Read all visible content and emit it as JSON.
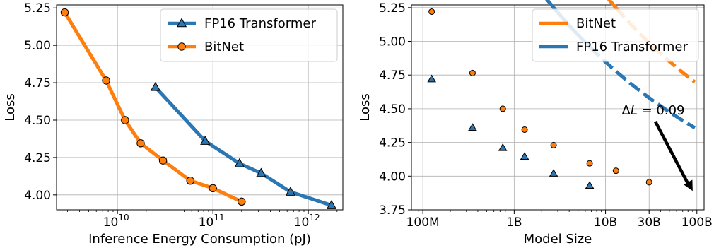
{
  "colors": {
    "fp16": "#2a77b4",
    "bitnet": "#ff7f0e"
  },
  "chart_data": [
    {
      "type": "line",
      "xlabel": "Inference Energy Consumption (pJ)",
      "ylabel": "Loss",
      "xscale": "log",
      "xlim": [
        2300000000.0,
        2300000000000.0
      ],
      "ylim": [
        3.9,
        5.27
      ],
      "yticks": [
        4.0,
        4.25,
        4.5,
        4.75,
        5.0,
        5.25
      ],
      "ytick_labels": [
        "4.00",
        "4.25",
        "4.50",
        "4.75",
        "5.00",
        "5.25"
      ],
      "xticks": [
        10000000000.0,
        100000000000.0,
        1000000000000.0
      ],
      "xtick_labels": [
        {
          "base": "10",
          "exp": "10"
        },
        {
          "base": "10",
          "exp": "11"
        },
        {
          "base": "10",
          "exp": "12"
        }
      ],
      "grid": true,
      "legend": "top-right",
      "series": [
        {
          "name": "FP16 Transformer",
          "color": "#2a77b4",
          "marker": "triangle",
          "x": [
            25000000000.0,
            83000000000.0,
            190000000000.0,
            320000000000.0,
            650000000000.0,
            1750000000000.0
          ],
          "y": [
            4.72,
            4.36,
            4.21,
            4.145,
            4.02,
            3.93
          ]
        },
        {
          "name": "BitNet",
          "color": "#ff7f0e",
          "marker": "circle",
          "x": [
            2800000000.0,
            7600000000.0,
            12000000000.0,
            17500000000.0,
            30000000000.0,
            58000000000.0,
            100000000000.0,
            200000000000.0
          ],
          "y": [
            5.22,
            4.765,
            4.5,
            4.345,
            4.23,
            4.095,
            4.045,
            3.955
          ]
        }
      ]
    },
    {
      "type": "line",
      "xlabel": "Model Size",
      "ylabel": "Loss",
      "xscale": "log",
      "xlim": [
        75000000.0,
        120000000000.0
      ],
      "ylim": [
        3.75,
        5.27
      ],
      "yticks": [
        3.75,
        4.0,
        4.25,
        4.5,
        4.75,
        5.0,
        5.25
      ],
      "ytick_labels": [
        "3.75",
        "4.00",
        "4.25",
        "4.50",
        "4.75",
        "5.00",
        "5.25"
      ],
      "xticks": [
        100000000.0,
        1000000000.0,
        10000000000.0,
        30000000000.0,
        100000000000.0
      ],
      "xtick_labels": [
        "100M",
        "1B",
        "10B",
        "30B",
        "100B"
      ],
      "grid": true,
      "legend": "top-right",
      "annotation": {
        "text": "ΔL = 0.09",
        "x": 90000000000.0,
        "y": 3.88
      },
      "fit_split": 13000000000.0,
      "series": [
        {
          "name": "BitNet",
          "color": "#ff7f0e",
          "marker": "circle",
          "fit": {
            "a": 3.635,
            "b": 11.8,
            "c": 0.21
          },
          "x": [
            125000000.0,
            350000000.0,
            750000000.0,
            1300000000.0,
            2700000000.0,
            6700000000.0,
            13000000000.0,
            30000000000.0
          ],
          "y": [
            5.22,
            4.765,
            4.5,
            4.345,
            4.23,
            4.095,
            4.04,
            3.955
          ]
        },
        {
          "name": "FP16 Transformer",
          "color": "#2a77b4",
          "marker": "triangle",
          "fit": {
            "a": 3.5,
            "b": 8.5,
            "c": 0.2
          },
          "x": [
            125000000.0,
            350000000.0,
            750000000.0,
            1300000000.0,
            2700000000.0,
            6700000000.0
          ],
          "y": [
            4.72,
            4.36,
            4.21,
            4.145,
            4.02,
            3.93
          ]
        }
      ]
    }
  ]
}
